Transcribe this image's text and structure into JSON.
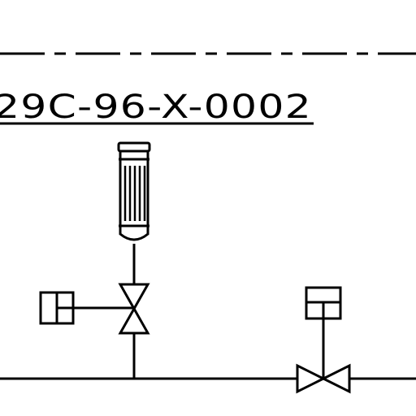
{
  "drawing": {
    "tag_label": "29C-96-X-0002"
  },
  "colors": {
    "line": "#000000",
    "background": "#ffffff"
  },
  "symbols": {
    "filter": "vertical-cartridge-filter-icon",
    "manual_valve": "globe-valve-icon",
    "control_valve": "control-valve-icon",
    "actuator_box": "actuator-box-icon"
  }
}
